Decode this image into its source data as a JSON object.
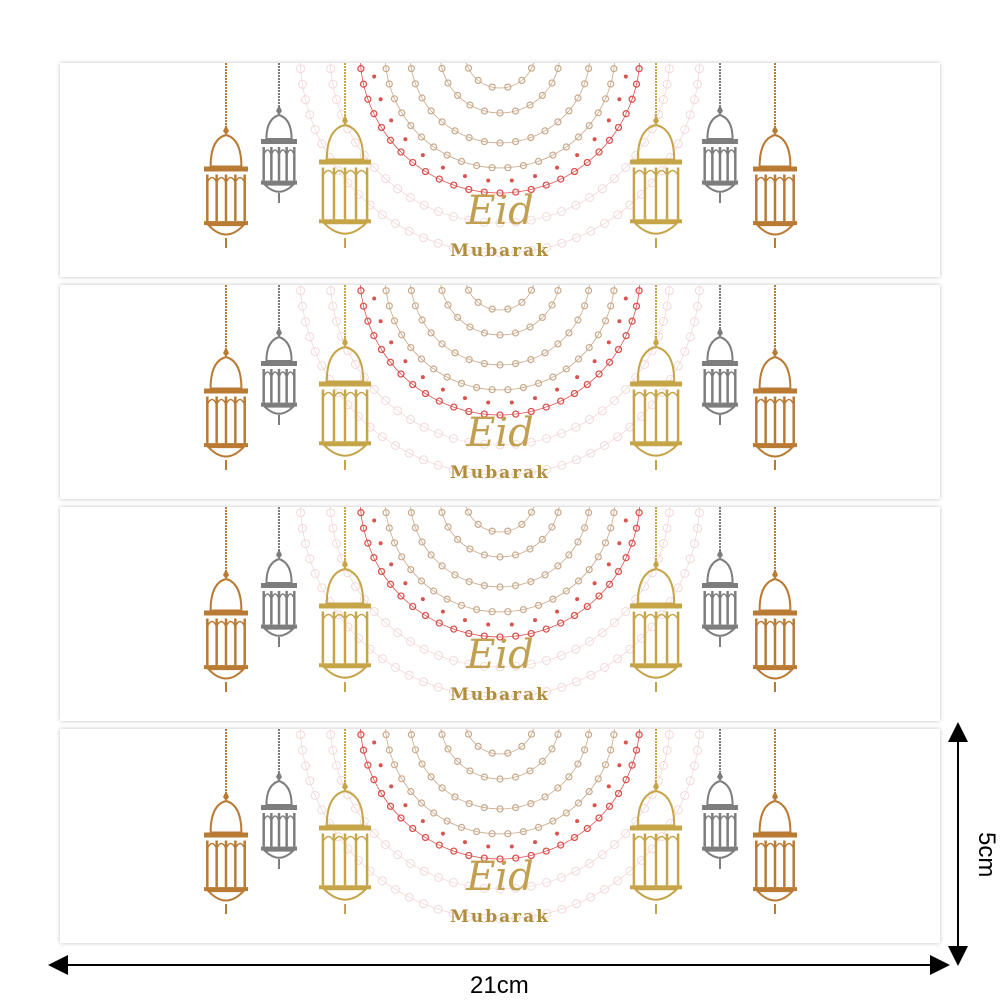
{
  "banners": [
    {
      "title": "Eid",
      "subtitle": "Mubarak"
    },
    {
      "title": "Eid",
      "subtitle": "Mubarak"
    },
    {
      "title": "Eid",
      "subtitle": "Mubarak"
    },
    {
      "title": "Eid",
      "subtitle": "Mubarak"
    }
  ],
  "lantern_colors": {
    "copper": "#b97a34",
    "silver": "#7d7d7d",
    "gold": "#c6a448"
  },
  "mandala_colors": {
    "outer": "#c9a98a",
    "inner": "#d9534f",
    "faint": "#f2d9d9"
  },
  "dimensions": {
    "width_label": "21cm",
    "height_label": "5cm"
  }
}
